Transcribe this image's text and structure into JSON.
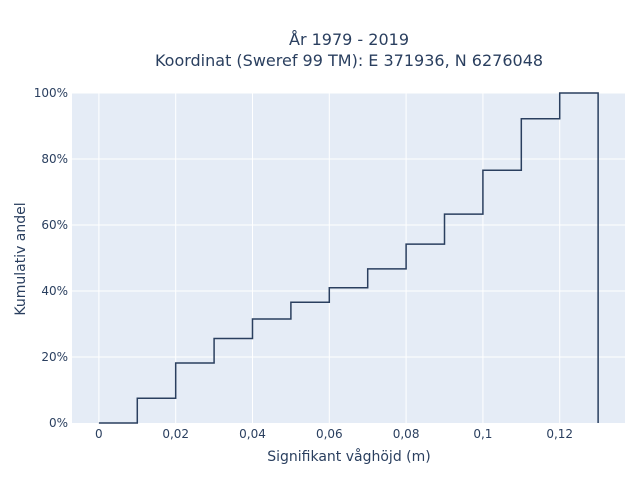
{
  "chart_data": {
    "type": "line",
    "line_shape": "step",
    "title_lines": [
      "År 1979 - 2019",
      "Koordinat (Sweref 99 TM): E 371936, N 6276048"
    ],
    "xlabel": "Signifikant våghöjd (m)",
    "ylabel": "Kumulativ andel",
    "xlim": [
      -0.007,
      0.137
    ],
    "ylim": [
      0,
      1.0
    ],
    "x_ticks": [
      0,
      0.02,
      0.04,
      0.06,
      0.08,
      0.1,
      0.12
    ],
    "x_tick_labels": [
      "0",
      "0,02",
      "0,04",
      "0,06",
      "0,08",
      "0,1",
      "0,12"
    ],
    "y_ticks": [
      0,
      0.2,
      0.4,
      0.6,
      0.8,
      1.0
    ],
    "y_tick_labels": [
      "0%",
      "20%",
      "40%",
      "60%",
      "80%",
      "100%"
    ],
    "grid": true,
    "background": "#e5ecf6",
    "line_color": "#2a3f5f",
    "x": [
      0,
      0.01,
      0.02,
      0.03,
      0.04,
      0.05,
      0.06,
      0.07,
      0.08,
      0.09,
      0.1,
      0.11,
      0.12,
      0.13
    ],
    "y": [
      0,
      0.075,
      0.182,
      0.256,
      0.315,
      0.366,
      0.41,
      0.467,
      0.542,
      0.633,
      0.766,
      0.922,
      1.0,
      1.0
    ],
    "end_drop_to_zero": true
  }
}
